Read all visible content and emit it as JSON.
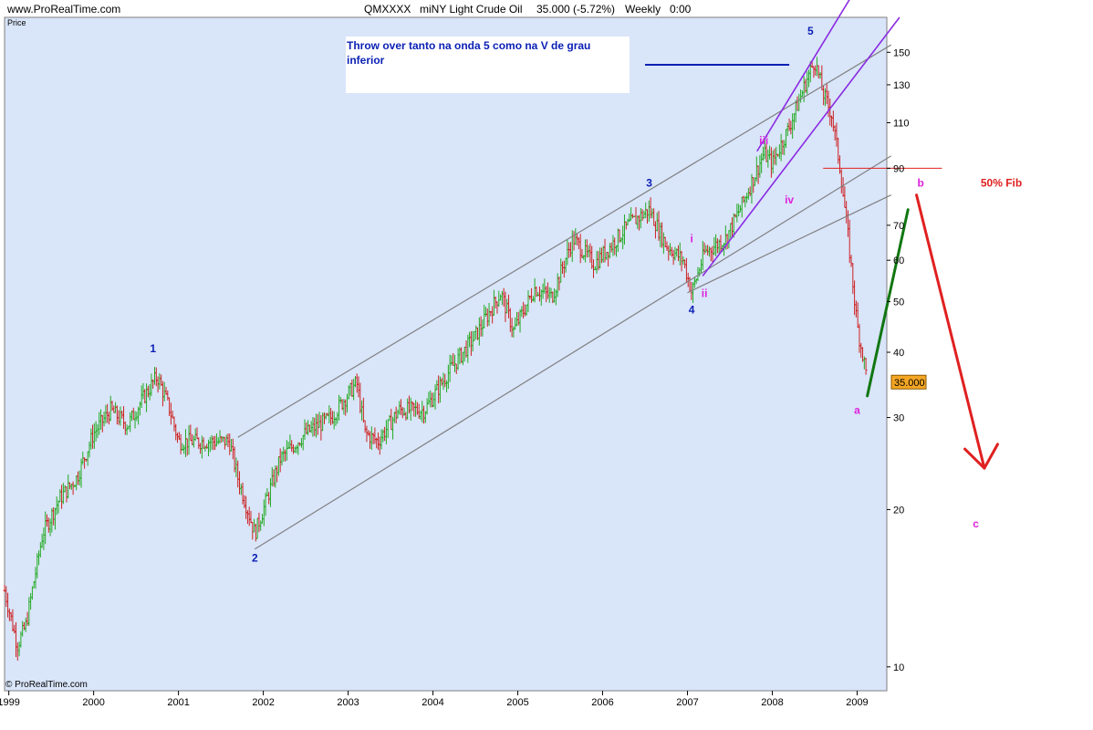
{
  "header": {
    "site": "www.ProRealTime.com",
    "symbol": "QMXXXX",
    "instrument": "miNY Light Crude Oil",
    "last": "35.000 (-5.72%)",
    "period": "Weekly",
    "time": "0:00"
  },
  "price_axis_label": "Price",
  "footer_copyright": "© ProRealTime.com",
  "colors": {
    "plot_bg": "#d9e5f9",
    "up_bar": "#22aa22",
    "down_bar": "#cc2222",
    "channel": "#808080",
    "blue_wave": "#0a1fb5",
    "magenta_wave": "#dd22dd",
    "purple_line": "#8a2be2",
    "green_arrow": "#117711",
    "red_arrow": "#e02020",
    "price_tag": "#f5a623"
  },
  "chart_data": {
    "type": "ohlc",
    "title": "QMXXXX - miNY Light Crude Oil  35.000 (-5.72%)  Weekly 0:00",
    "ylabel": "Price",
    "yscale": "log",
    "ylim": [
      9,
      175
    ],
    "xlim": [
      1998.95,
      2009.35
    ],
    "y_ticks": [
      10,
      20,
      30,
      40,
      50,
      60,
      70,
      90,
      110,
      130,
      150
    ],
    "x_ticks": [
      1999,
      2000,
      2001,
      2002,
      2003,
      2004,
      2005,
      2006,
      2007,
      2008,
      2009
    ],
    "last_price_label": "35.000",
    "last_price": 35.0,
    "price_path": [
      [
        1998.95,
        14
      ],
      [
        1999.1,
        11
      ],
      [
        1999.2,
        12
      ],
      [
        1999.4,
        18
      ],
      [
        1999.6,
        21
      ],
      [
        1999.8,
        23
      ],
      [
        2000.0,
        28
      ],
      [
        2000.2,
        31
      ],
      [
        2000.4,
        29
      ],
      [
        2000.6,
        33
      ],
      [
        2000.75,
        36
      ],
      [
        2000.9,
        31
      ],
      [
        2001.0,
        27
      ],
      [
        2001.3,
        27
      ],
      [
        2001.6,
        27
      ],
      [
        2001.7,
        23
      ],
      [
        2001.9,
        18
      ],
      [
        2002.0,
        20
      ],
      [
        2002.2,
        25
      ],
      [
        2002.5,
        28
      ],
      [
        2002.8,
        30
      ],
      [
        2003.1,
        35
      ],
      [
        2003.2,
        28
      ],
      [
        2003.35,
        27
      ],
      [
        2003.6,
        31
      ],
      [
        2003.9,
        31
      ],
      [
        2004.2,
        37
      ],
      [
        2004.5,
        43
      ],
      [
        2004.8,
        52
      ],
      [
        2004.95,
        44
      ],
      [
        2005.2,
        53
      ],
      [
        2005.4,
        51
      ],
      [
        2005.65,
        66
      ],
      [
        2005.9,
        59
      ],
      [
        2006.1,
        64
      ],
      [
        2006.3,
        70
      ],
      [
        2006.55,
        75
      ],
      [
        2006.75,
        64
      ],
      [
        2006.95,
        60
      ],
      [
        2007.05,
        52
      ],
      [
        2007.2,
        62
      ],
      [
        2007.45,
        66
      ],
      [
        2007.65,
        77
      ],
      [
        2007.9,
        96
      ],
      [
        2008.0,
        92
      ],
      [
        2008.2,
        108
      ],
      [
        2008.4,
        132
      ],
      [
        2008.5,
        145
      ],
      [
        2008.6,
        125
      ],
      [
        2008.7,
        114
      ],
      [
        2008.8,
        90
      ],
      [
        2008.9,
        65
      ],
      [
        2009.0,
        45
      ],
      [
        2009.1,
        37
      ],
      [
        2009.12,
        35
      ]
    ],
    "channel_lines": [
      {
        "name": "upper-channel",
        "x1": 2001.7,
        "y1": 27.5,
        "x2": 2009.4,
        "y2": 155
      },
      {
        "name": "lower-channel",
        "x1": 2001.9,
        "y1": 16.8,
        "x2": 2009.4,
        "y2": 95
      },
      {
        "name": "mid-channel",
        "x1": 2007.0,
        "y1": 52,
        "x2": 2009.4,
        "y2": 80
      }
    ],
    "purple_lines": [
      {
        "name": "purple-line-upper",
        "x1": 2007.82,
        "y1": 97,
        "x2": 2009.0,
        "y2": 200
      },
      {
        "name": "purple-line-lower",
        "x1": 2007.18,
        "y1": 56,
        "x2": 2009.5,
        "y2": 175
      }
    ],
    "fib_line": {
      "x1": 2008.6,
      "x2": 2010.0,
      "y": 90
    },
    "throw_over_line": {
      "x1": 2006.5,
      "x2": 2008.2,
      "y": 142
    },
    "waves_blue": [
      {
        "label": "1",
        "x": 2000.7,
        "y": 40
      },
      {
        "label": "2",
        "x": 2001.9,
        "y": 15.9
      },
      {
        "label": "3",
        "x": 2006.55,
        "y": 83
      },
      {
        "label": "4",
        "x": 2007.05,
        "y": 47.5
      },
      {
        "label": "5",
        "x": 2008.45,
        "y": 162
      }
    ],
    "waves_magenta": [
      {
        "label": "i",
        "x": 2007.05,
        "y": 65
      },
      {
        "label": "ii",
        "x": 2007.2,
        "y": 51
      },
      {
        "label": "iii",
        "x": 2007.9,
        "y": 100
      },
      {
        "label": "iv",
        "x": 2008.2,
        "y": 77
      },
      {
        "label": "a",
        "x": 2009.0,
        "y": 30.5
      },
      {
        "label": "b",
        "x": 2009.75,
        "y": 83
      },
      {
        "label": "c",
        "x": 2010.4,
        "y": 18.5
      }
    ],
    "fib_label": {
      "text": "50% Fib",
      "x": 2010.7,
      "y": 83
    },
    "annotation": "Throw over tanto na onda 5 como na V de grau inferior",
    "green_arrow": {
      "x1": 2009.12,
      "y1": 33,
      "x2": 2009.6,
      "y2": 75
    },
    "red_arrow": {
      "x1": 2009.7,
      "y1": 80,
      "x2": 2010.5,
      "y2": 24
    }
  }
}
